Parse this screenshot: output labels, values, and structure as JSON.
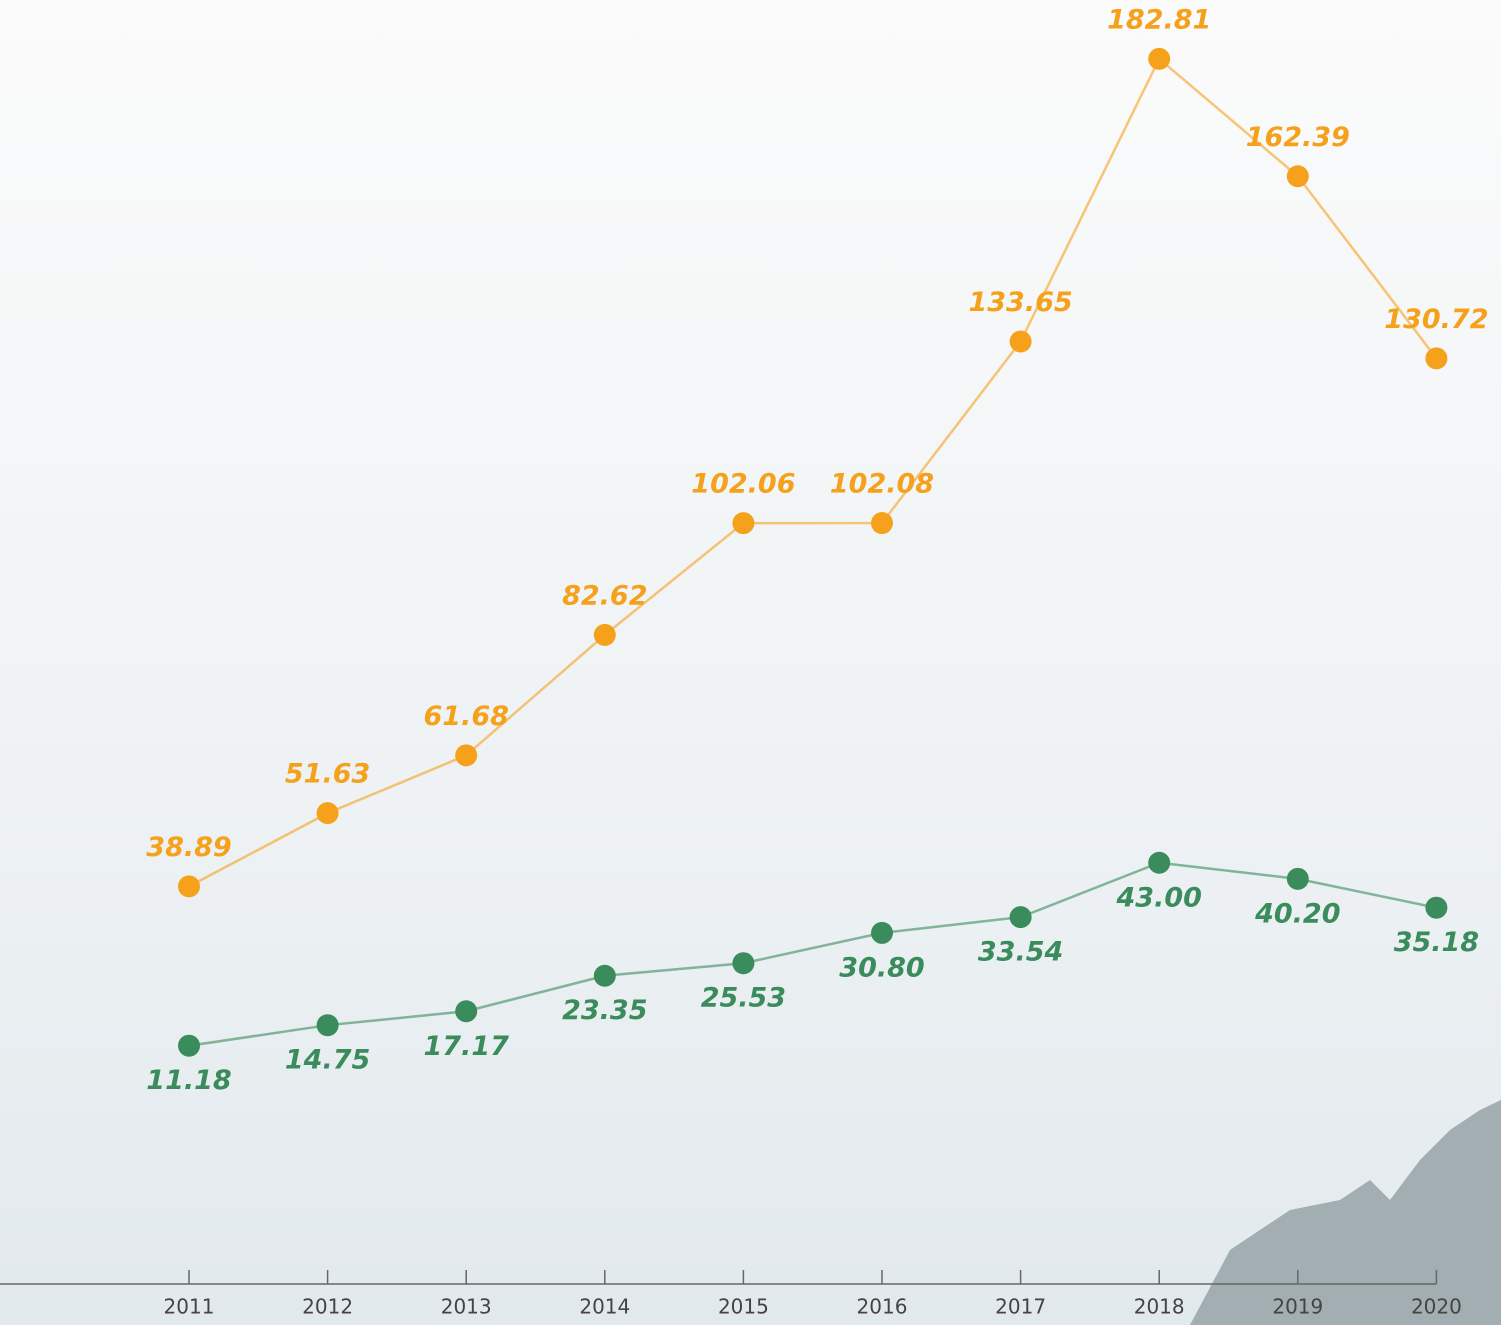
{
  "chart_data": {
    "type": "line",
    "categories": [
      "2011",
      "2012",
      "2013",
      "2014",
      "2015",
      "2016",
      "2017",
      "2018",
      "2019",
      "2020"
    ],
    "series": [
      {
        "color": "#f5a11c",
        "values": [
          38.89,
          51.63,
          61.68,
          82.62,
          102.06,
          102.08,
          133.65,
          182.81,
          162.39,
          130.72
        ],
        "value_labels": [
          "38.89",
          "51.63",
          "61.68",
          "82.62",
          "102.06",
          "102.08",
          "133.65",
          "182.81",
          "162.39",
          "130.72"
        ]
      },
      {
        "color": "#3a8c5c",
        "values": [
          11.18,
          14.75,
          17.17,
          23.35,
          25.53,
          30.8,
          33.54,
          43.0,
          40.2,
          35.18
        ],
        "value_labels": [
          "11.18",
          "14.75",
          "17.17",
          "23.35",
          "25.53",
          "30.80",
          "33.54",
          "43.00",
          "40.20",
          "35.18"
        ]
      }
    ]
  }
}
